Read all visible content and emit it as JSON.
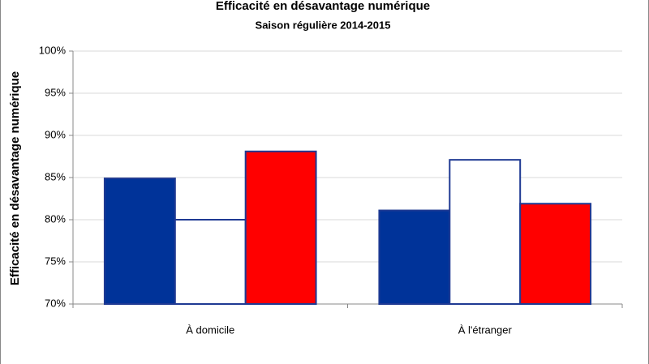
{
  "chart_data": {
    "type": "bar",
    "title": "Efficacité en désavantage numérique",
    "subtitle": "Saison régulière 2014-2015",
    "y_label": "Efficacité en désavantage numérique",
    "categories": [
      "À domicile",
      "À l'étranger"
    ],
    "series": [
      {
        "color": "#003399",
        "values": [
          84.9,
          81.1
        ]
      },
      {
        "color": "#ffffff",
        "values": [
          80.0,
          87.1
        ]
      },
      {
        "color": "#ff0000",
        "values": [
          88.1,
          81.9
        ]
      }
    ],
    "ylim": [
      70,
      100
    ],
    "yticks": [
      {
        "value": 70,
        "label": "70%"
      },
      {
        "value": 75,
        "label": "75%"
      },
      {
        "value": 80,
        "label": "80%"
      },
      {
        "value": 85,
        "label": "85%"
      },
      {
        "value": 90,
        "label": "90%"
      },
      {
        "value": 95,
        "label": "95%"
      },
      {
        "value": 100,
        "label": "100%"
      }
    ],
    "grid": true
  }
}
